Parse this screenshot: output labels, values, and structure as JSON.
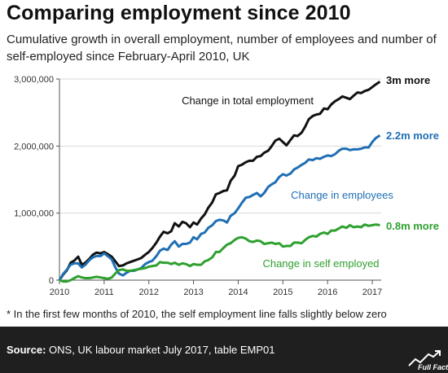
{
  "header": {
    "title": "Comparing employment since 2010",
    "subtitle": "Cumulative growth in overall employment, number of employees and number of self-employed since February-April 2010, UK"
  },
  "footnote": "* In the first few months of 2010, the self employment line falls slightly below zero",
  "source": {
    "label": "Source:",
    "text": " ONS, UK labour market July 2017, table EMP01",
    "logo_text": "Full Fact"
  },
  "chart_data": {
    "type": "line",
    "x_unit": "year",
    "xlim": [
      2010,
      2017.2
    ],
    "ylim": [
      0,
      3000000
    ],
    "xticks": [
      "2010",
      "2011",
      "2012",
      "2013",
      "2014",
      "2015",
      "2016",
      "2017"
    ],
    "yticks": [
      "0",
      "1,000,000",
      "2,000,000",
      "3,000,000"
    ],
    "grid": "horizontal",
    "colors": {
      "total": "#111111",
      "employees": "#1f6fb4",
      "self": "#2ea02e",
      "axis": "#555555",
      "grid": "#d9d9d9"
    },
    "series": [
      {
        "key": "total",
        "label": "Change in total employment",
        "end_label": "3m more",
        "x": [
          2010.0,
          2010.08,
          2010.17,
          2010.25,
          2010.33,
          2010.42,
          2010.5,
          2010.58,
          2010.67,
          2010.75,
          2010.83,
          2010.92,
          2011.0,
          2011.08,
          2011.17,
          2011.25,
          2011.33,
          2011.42,
          2011.5,
          2011.58,
          2011.67,
          2011.75,
          2011.83,
          2011.92,
          2012.0,
          2012.08,
          2012.17,
          2012.25,
          2012.33,
          2012.42,
          2012.5,
          2012.58,
          2012.67,
          2012.75,
          2012.83,
          2012.92,
          2013.0,
          2013.08,
          2013.17,
          2013.25,
          2013.33,
          2013.42,
          2013.5,
          2013.58,
          2013.67,
          2013.75,
          2013.83,
          2013.92,
          2014.0,
          2014.08,
          2014.17,
          2014.25,
          2014.33,
          2014.42,
          2014.5,
          2014.58,
          2014.67,
          2014.75,
          2014.83,
          2014.92,
          2015.0,
          2015.08,
          2015.17,
          2015.25,
          2015.33,
          2015.42,
          2015.5,
          2015.58,
          2015.67,
          2015.75,
          2015.83,
          2015.92,
          2016.0,
          2016.08,
          2016.17,
          2016.25,
          2016.33,
          2016.42,
          2016.5,
          2016.58,
          2016.67,
          2016.75,
          2016.83,
          2016.92,
          2017.0,
          2017.08,
          2017.17
        ],
        "values": [
          0,
          80000,
          150000,
          260000,
          290000,
          350000,
          230000,
          260000,
          320000,
          380000,
          410000,
          400000,
          420000,
          390000,
          350000,
          280000,
          210000,
          220000,
          250000,
          270000,
          290000,
          310000,
          330000,
          380000,
          420000,
          480000,
          560000,
          650000,
          720000,
          700000,
          730000,
          850000,
          800000,
          870000,
          850000,
          790000,
          860000,
          830000,
          920000,
          980000,
          1080000,
          1160000,
          1280000,
          1300000,
          1330000,
          1340000,
          1480000,
          1560000,
          1700000,
          1720000,
          1760000,
          1780000,
          1780000,
          1840000,
          1850000,
          1900000,
          1930000,
          2000000,
          2080000,
          2110000,
          2060000,
          2010000,
          2090000,
          2160000,
          2150000,
          2200000,
          2290000,
          2400000,
          2450000,
          2470000,
          2480000,
          2560000,
          2550000,
          2620000,
          2670000,
          2700000,
          2740000,
          2720000,
          2700000,
          2750000,
          2800000,
          2790000,
          2820000,
          2840000,
          2880000,
          2920000,
          2960000
        ]
      },
      {
        "key": "employees",
        "label": "Change in employees",
        "end_label": "2.2m more",
        "x": [
          2010.0,
          2010.08,
          2010.17,
          2010.25,
          2010.33,
          2010.42,
          2010.5,
          2010.58,
          2010.67,
          2010.75,
          2010.83,
          2010.92,
          2011.0,
          2011.08,
          2011.17,
          2011.25,
          2011.33,
          2011.42,
          2011.5,
          2011.58,
          2011.67,
          2011.75,
          2011.83,
          2011.92,
          2012.0,
          2012.08,
          2012.17,
          2012.25,
          2012.33,
          2012.42,
          2012.5,
          2012.58,
          2012.67,
          2012.75,
          2012.83,
          2012.92,
          2013.0,
          2013.08,
          2013.17,
          2013.25,
          2013.33,
          2013.42,
          2013.5,
          2013.58,
          2013.67,
          2013.75,
          2013.83,
          2013.92,
          2014.0,
          2014.08,
          2014.17,
          2014.25,
          2014.33,
          2014.42,
          2014.5,
          2014.58,
          2014.67,
          2014.75,
          2014.83,
          2014.92,
          2015.0,
          2015.08,
          2015.17,
          2015.25,
          2015.33,
          2015.42,
          2015.5,
          2015.58,
          2015.67,
          2015.75,
          2015.83,
          2015.92,
          2016.0,
          2016.08,
          2016.17,
          2016.25,
          2016.33,
          2016.42,
          2016.5,
          2016.58,
          2016.67,
          2016.75,
          2016.83,
          2016.92,
          2017.0,
          2017.08,
          2017.17
        ],
        "values": [
          0,
          90000,
          160000,
          230000,
          250000,
          250000,
          190000,
          230000,
          300000,
          340000,
          360000,
          360000,
          400000,
          360000,
          310000,
          190000,
          100000,
          70000,
          110000,
          140000,
          140000,
          160000,
          180000,
          240000,
          270000,
          290000,
          360000,
          440000,
          470000,
          450000,
          530000,
          580000,
          500000,
          540000,
          540000,
          560000,
          640000,
          610000,
          690000,
          710000,
          780000,
          820000,
          880000,
          900000,
          890000,
          860000,
          960000,
          1000000,
          1070000,
          1150000,
          1230000,
          1240000,
          1270000,
          1300000,
          1250000,
          1300000,
          1390000,
          1430000,
          1460000,
          1540000,
          1580000,
          1560000,
          1590000,
          1650000,
          1680000,
          1720000,
          1750000,
          1800000,
          1790000,
          1820000,
          1810000,
          1840000,
          1860000,
          1850000,
          1880000,
          1930000,
          1960000,
          1960000,
          1940000,
          1950000,
          1950000,
          1960000,
          1980000,
          1980000,
          2060000,
          2120000,
          2160000
        ]
      },
      {
        "key": "self",
        "label": "Change in self employed",
        "end_label": "0.8m more",
        "x": [
          2010.0,
          2010.08,
          2010.17,
          2010.25,
          2010.33,
          2010.42,
          2010.5,
          2010.58,
          2010.67,
          2010.75,
          2010.83,
          2010.92,
          2011.0,
          2011.08,
          2011.17,
          2011.25,
          2011.33,
          2011.42,
          2011.5,
          2011.58,
          2011.67,
          2011.75,
          2011.83,
          2011.92,
          2012.0,
          2012.08,
          2012.17,
          2012.25,
          2012.33,
          2012.42,
          2012.5,
          2012.58,
          2012.67,
          2012.75,
          2012.83,
          2012.92,
          2013.0,
          2013.08,
          2013.17,
          2013.25,
          2013.33,
          2013.42,
          2013.5,
          2013.58,
          2013.67,
          2013.75,
          2013.83,
          2013.92,
          2014.0,
          2014.08,
          2014.17,
          2014.25,
          2014.33,
          2014.42,
          2014.5,
          2014.58,
          2014.67,
          2014.75,
          2014.83,
          2014.92,
          2015.0,
          2015.08,
          2015.17,
          2015.25,
          2015.33,
          2015.42,
          2015.5,
          2015.58,
          2015.67,
          2015.75,
          2015.83,
          2015.92,
          2016.0,
          2016.08,
          2016.17,
          2016.25,
          2016.33,
          2016.42,
          2016.5,
          2016.58,
          2016.67,
          2016.75,
          2016.83,
          2016.92,
          2017.0,
          2017.08,
          2017.17
        ],
        "values": [
          0,
          -20000,
          -20000,
          0,
          30000,
          60000,
          40000,
          30000,
          30000,
          40000,
          50000,
          40000,
          30000,
          20000,
          40000,
          100000,
          150000,
          160000,
          140000,
          140000,
          150000,
          160000,
          170000,
          180000,
          200000,
          210000,
          220000,
          270000,
          260000,
          260000,
          240000,
          260000,
          230000,
          250000,
          240000,
          210000,
          240000,
          230000,
          230000,
          280000,
          300000,
          340000,
          420000,
          420000,
          480000,
          530000,
          550000,
          600000,
          630000,
          640000,
          620000,
          580000,
          570000,
          590000,
          580000,
          540000,
          550000,
          560000,
          540000,
          550000,
          500000,
          510000,
          510000,
          560000,
          560000,
          550000,
          600000,
          640000,
          660000,
          650000,
          690000,
          710000,
          690000,
          740000,
          740000,
          770000,
          800000,
          780000,
          820000,
          790000,
          800000,
          790000,
          830000,
          810000,
          820000,
          830000,
          820000
        ]
      }
    ]
  }
}
